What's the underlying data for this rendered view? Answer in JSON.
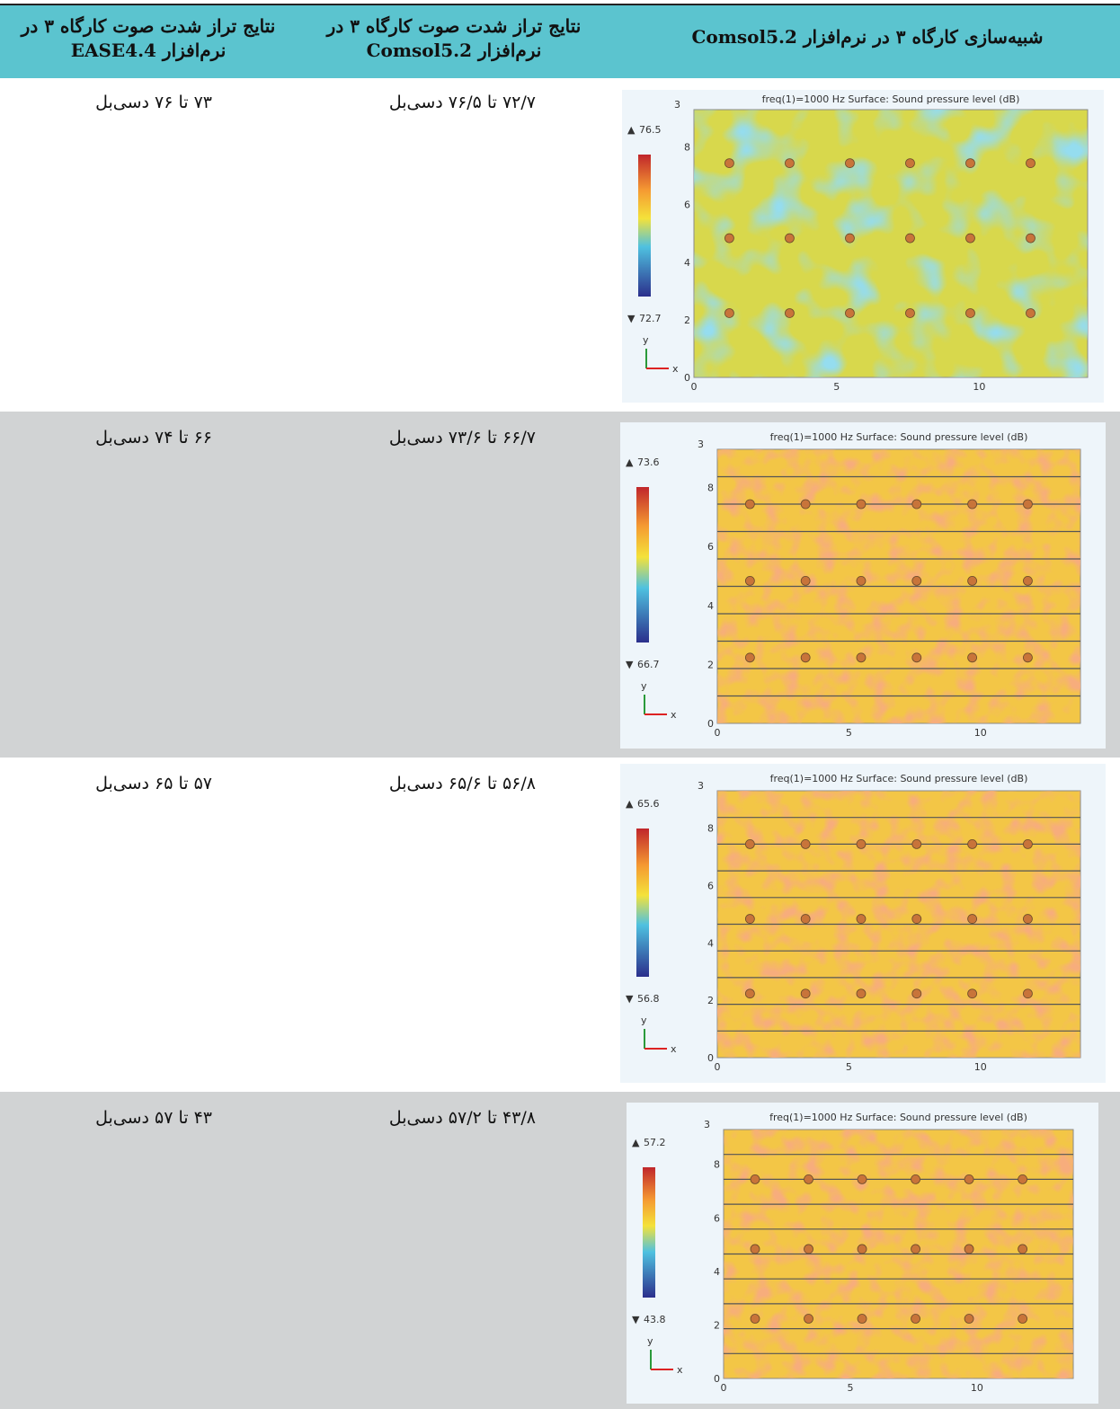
{
  "header": {
    "columns": [
      "شبیه‌سازی کارگاه ۳ در نرم‌افزار Comsol5.2",
      "نتایج تراز شدت صوت کارگاه ۳ در نرم‌افزار Comsol5.2",
      "نتایج تراز شدت صوت کارگاه ۳ در نرم‌افزار EASE4.4"
    ]
  },
  "rows": [
    {
      "comsol": "۷۲/۷  تا ۷۶/۵ دسی‌بل",
      "ease": "۷۳ تا ۷۶ دسی‌بل",
      "plot": {
        "title": "freq(1)=1000 Hz  Surface: Sound pressure level (dB)",
        "max": 76.5,
        "min": 72.7,
        "corner": "3",
        "xticks": [
          0,
          5,
          10
        ],
        "yticks": [
          0,
          2,
          4,
          6,
          8
        ],
        "xlabel": "x",
        "ylabel": "y"
      }
    },
    {
      "comsol": "۶۶/۷ تا ۷۳/۶ دسی‌بل",
      "ease": "۶۶ تا ۷۴ دسی‌بل",
      "plot": {
        "title": "freq(1)=1000 Hz  Surface: Sound pressure level (dB)",
        "max": 73.6,
        "min": 66.7,
        "corner": "3",
        "xticks": [
          0,
          5,
          10
        ],
        "yticks": [
          0,
          2,
          4,
          6,
          8
        ],
        "xlabel": "x",
        "ylabel": "y"
      }
    },
    {
      "comsol": "۵۶/۸ تا ۶۵/۶ دسی‌بل",
      "ease": "۵۷ تا ۶۵ دسی‌بل",
      "plot": {
        "title": "freq(1)=1000 Hz  Surface: Sound pressure level (dB)",
        "max": 65.6,
        "min": 56.8,
        "corner": "3",
        "xticks": [
          0,
          5,
          10
        ],
        "yticks": [
          0,
          2,
          4,
          6,
          8
        ],
        "xlabel": "x",
        "ylabel": "y"
      }
    },
    {
      "comsol": "۴۳/۸ تا ۵۷/۲ دسی‌بل",
      "ease": "۴۳ تا ۵۷ دسی‌بل",
      "plot": {
        "title": "freq(1)=1000 Hz  Surface: Sound pressure level (dB)",
        "max": 57.2,
        "min": 43.8,
        "corner": "3",
        "xticks": [
          0,
          5,
          10
        ],
        "yticks": [
          0,
          2,
          4,
          6,
          8
        ],
        "xlabel": "x",
        "ylabel": "y"
      }
    }
  ]
}
